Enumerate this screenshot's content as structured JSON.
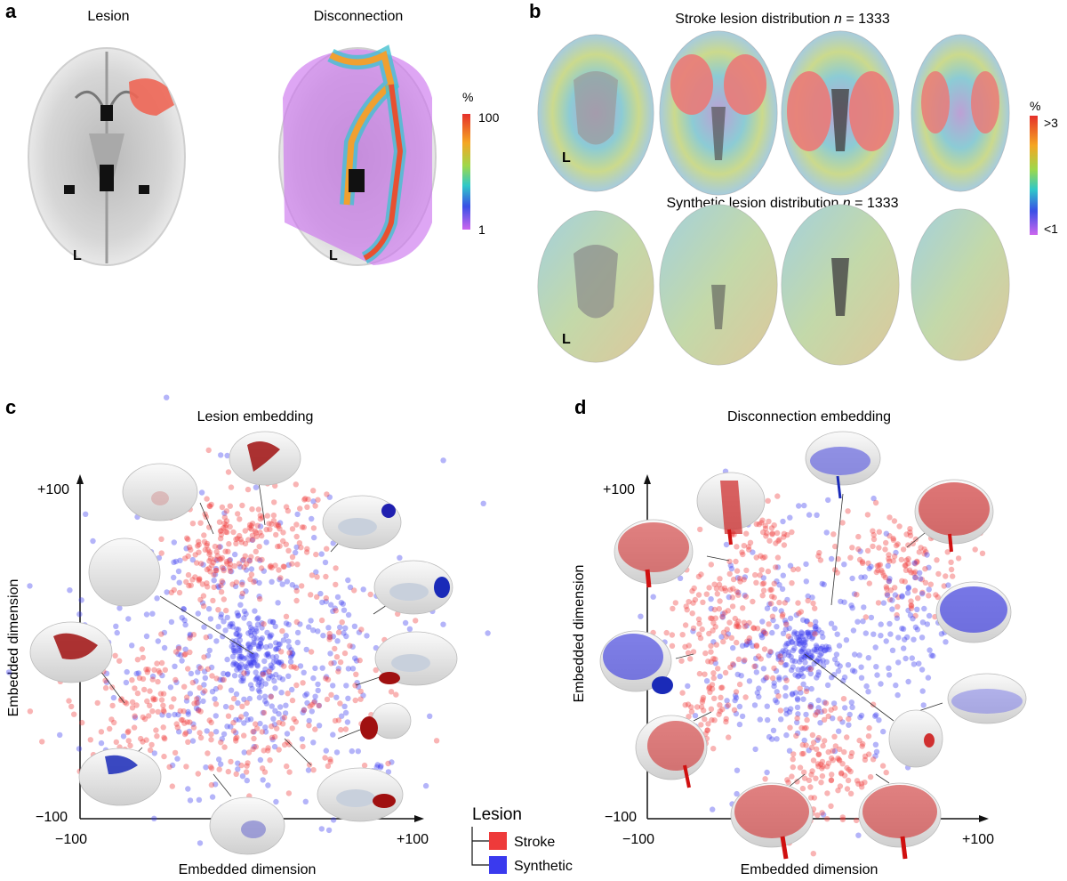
{
  "colors": {
    "stroke": "#ee3a3a",
    "synthetic": "#3a3aee",
    "colorbar_top": "#e83a2a",
    "colorbar_bottom": "#cc66ee",
    "brain_gray": "#d9d9d9"
  },
  "panel_a": {
    "letter": "a",
    "lesion_title": "Lesion",
    "disconnection_title": "Disconnection",
    "hemisphere_marker": "L",
    "colorbar": {
      "unit": "%",
      "max": "100",
      "min": "1"
    }
  },
  "panel_b": {
    "letter": "b",
    "stroke_title_prefix": "Stroke lesion distribution ",
    "synthetic_title_prefix": "Synthetic lesion distribution ",
    "n_symbol": "n",
    "n_value": " = 1333",
    "hemisphere_marker": "L",
    "colorbar": {
      "unit": "%",
      "max": ">3",
      "min": "<1"
    }
  },
  "panel_c": {
    "letter": "c",
    "title": "Lesion embedding",
    "y_top": "+100",
    "x_min": "−100",
    "x_max": "+100",
    "x_label": "Embedded dimension",
    "y_label": "Embedded dimension"
  },
  "panel_d": {
    "letter": "d",
    "title": "Disconnection embedding",
    "y_top": "+100",
    "x_min": "−100",
    "x_max": "+100",
    "x_label": "Embedded dimension",
    "y_label": "Embedded dimension"
  },
  "legend": {
    "title": "Lesion",
    "items": [
      {
        "label": "Stroke",
        "color": "#ee3a3a"
      },
      {
        "label": "Synthetic",
        "color": "#3a3aee"
      }
    ]
  }
}
